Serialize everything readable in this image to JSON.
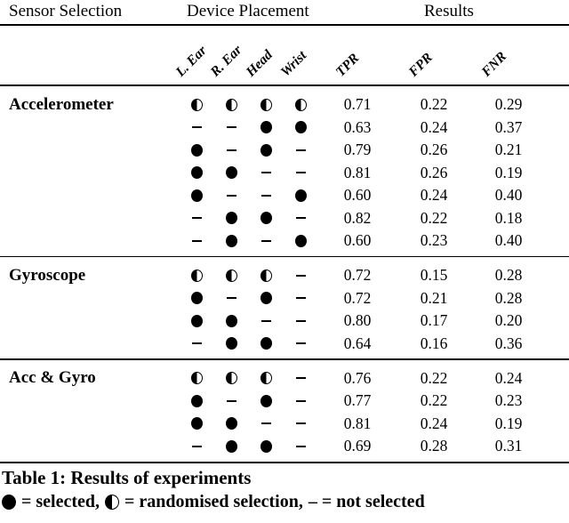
{
  "table": {
    "group_headers": {
      "sensor_selection": "Sensor Selection",
      "device_placement": "Device Placement",
      "results": "Results"
    },
    "columns": [
      "L. Ear",
      "R. Ear",
      "Head",
      "Wrist",
      "TPR",
      "FPR",
      "FNR"
    ],
    "sections": [
      {
        "label": "Accelerometer",
        "rows": [
          {
            "placement": [
              "randomised",
              "randomised",
              "randomised",
              "randomised"
            ],
            "tpr": "0.71",
            "fpr": "0.22",
            "fnr": "0.29"
          },
          {
            "placement": [
              "none",
              "none",
              "selected",
              "selected"
            ],
            "tpr": "0.63",
            "fpr": "0.24",
            "fnr": "0.37"
          },
          {
            "placement": [
              "selected",
              "none",
              "selected",
              "none"
            ],
            "tpr": "0.79",
            "fpr": "0.26",
            "fnr": "0.21"
          },
          {
            "placement": [
              "selected",
              "selected",
              "none",
              "none"
            ],
            "tpr": "0.81",
            "fpr": "0.26",
            "fnr": "0.19"
          },
          {
            "placement": [
              "selected",
              "none",
              "none",
              "selected"
            ],
            "tpr": "0.60",
            "fpr": "0.24",
            "fnr": "0.40"
          },
          {
            "placement": [
              "none",
              "selected",
              "selected",
              "none"
            ],
            "tpr": "0.82",
            "fpr": "0.22",
            "fnr": "0.18"
          },
          {
            "placement": [
              "none",
              "selected",
              "none",
              "selected"
            ],
            "tpr": "0.60",
            "fpr": "0.23",
            "fnr": "0.40"
          }
        ]
      },
      {
        "label": "Gyroscope",
        "rows": [
          {
            "placement": [
              "randomised",
              "randomised",
              "randomised",
              "none"
            ],
            "tpr": "0.72",
            "fpr": "0.15",
            "fnr": "0.28"
          },
          {
            "placement": [
              "selected",
              "none",
              "selected",
              "none"
            ],
            "tpr": "0.72",
            "fpr": "0.21",
            "fnr": "0.28"
          },
          {
            "placement": [
              "selected",
              "selected",
              "none",
              "none"
            ],
            "tpr": "0.80",
            "fpr": "0.17",
            "fnr": "0.20"
          },
          {
            "placement": [
              "none",
              "selected",
              "selected",
              "none"
            ],
            "tpr": "0.64",
            "fpr": "0.16",
            "fnr": "0.36"
          }
        ]
      },
      {
        "label": "Acc & Gyro",
        "rows": [
          {
            "placement": [
              "randomised",
              "randomised",
              "randomised",
              "none"
            ],
            "tpr": "0.76",
            "fpr": "0.22",
            "fnr": "0.24"
          },
          {
            "placement": [
              "selected",
              "none",
              "selected",
              "none"
            ],
            "tpr": "0.77",
            "fpr": "0.22",
            "fnr": "0.23"
          },
          {
            "placement": [
              "selected",
              "selected",
              "none",
              "none"
            ],
            "tpr": "0.81",
            "fpr": "0.24",
            "fnr": "0.19"
          },
          {
            "placement": [
              "none",
              "selected",
              "selected",
              "none"
            ],
            "tpr": "0.69",
            "fpr": "0.28",
            "fnr": "0.31"
          }
        ]
      }
    ],
    "caption": "Table 1: Results of experiments",
    "legend": {
      "selected": "= selected,",
      "randomised": "= randomised selection,",
      "not_selected": "– = not selected"
    },
    "symbols": {
      "selected": "filled-circle",
      "randomised": "half-circle-left-black",
      "none": "dash"
    },
    "colors": {
      "ink": "#000000",
      "background": "#ffffff"
    }
  }
}
